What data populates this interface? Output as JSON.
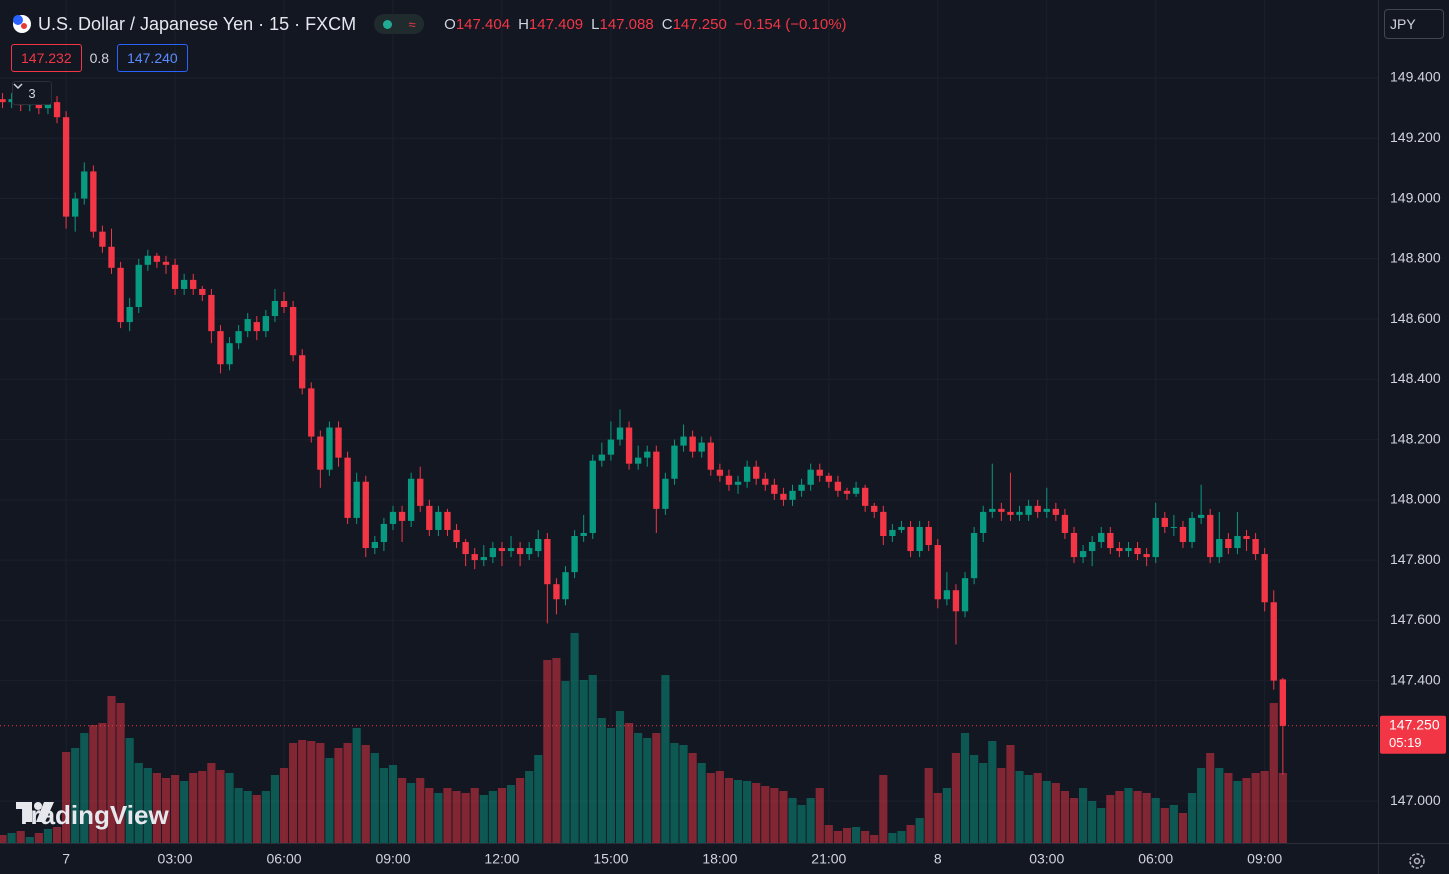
{
  "chart_data": {
    "type": "candlestick",
    "title": "U.S. Dollar / Japanese Yen · 15 · FXCM",
    "legend": {
      "o_key": "O",
      "o": "147.404",
      "h_key": "H",
      "h": "147.409",
      "l_key": "L",
      "l": "147.088",
      "c_key": "C",
      "c": "147.250",
      "change": "−0.154 (−0.10%)"
    },
    "bid": "147.232",
    "spread": "0.8",
    "ask": "147.240",
    "indicator_count": "3",
    "currency": "JPY",
    "last_price_label": "147.250",
    "countdown": "05:19",
    "watermark": "TradingView",
    "up_color": "#089981",
    "down_color": "#f23645",
    "volume_up_color": "rgba(8,153,129,0.5)",
    "volume_down_color": "rgba(242,54,69,0.5)",
    "grid": true,
    "xlim": [
      -1.82,
      36.12
    ],
    "ylim": [
      146.861,
      149.659
    ],
    "xticks": [
      {
        "value": 0,
        "label": "7"
      },
      {
        "value": 3,
        "label": "03:00"
      },
      {
        "value": 6,
        "label": "06:00"
      },
      {
        "value": 9,
        "label": "09:00"
      },
      {
        "value": 12,
        "label": "12:00"
      },
      {
        "value": 15,
        "label": "15:00"
      },
      {
        "value": 18,
        "label": "18:00"
      },
      {
        "value": 21,
        "label": "21:00"
      },
      {
        "value": 24,
        "label": "8"
      },
      {
        "value": 27,
        "label": "03:00"
      },
      {
        "value": 30,
        "label": "06:00"
      },
      {
        "value": 33,
        "label": "09:00"
      }
    ],
    "yticks": [
      {
        "value": 149.4,
        "label": "149.400"
      },
      {
        "value": 149.2,
        "label": "149.200"
      },
      {
        "value": 149.0,
        "label": "149.000"
      },
      {
        "value": 148.8,
        "label": "148.800"
      },
      {
        "value": 148.6,
        "label": "148.600"
      },
      {
        "value": 148.4,
        "label": "148.400"
      },
      {
        "value": 148.2,
        "label": "148.200"
      },
      {
        "value": 148.0,
        "label": "148.000"
      },
      {
        "value": 147.8,
        "label": "147.800"
      },
      {
        "value": 147.6,
        "label": "147.600"
      },
      {
        "value": 147.4,
        "label": "147.400"
      },
      {
        "value": 147.0,
        "label": "147.000"
      }
    ],
    "x": [
      -1.75,
      -1.5,
      -1.25,
      -1,
      -0.75,
      -0.5,
      -0.25,
      0,
      0.25,
      0.5,
      0.75,
      1,
      1.25,
      1.5,
      1.75,
      2,
      2.25,
      2.5,
      2.75,
      3,
      3.25,
      3.5,
      3.75,
      4,
      4.25,
      4.5,
      4.75,
      5,
      5.25,
      5.5,
      5.75,
      6,
      6.25,
      6.5,
      6.75,
      7,
      7.25,
      7.5,
      7.75,
      8,
      8.25,
      8.5,
      8.75,
      9,
      9.25,
      9.5,
      9.75,
      10,
      10.25,
      10.5,
      10.75,
      11,
      11.25,
      11.5,
      11.75,
      12,
      12.25,
      12.5,
      12.75,
      13,
      13.25,
      13.5,
      13.75,
      14,
      14.25,
      14.5,
      14.75,
      15,
      15.25,
      15.5,
      15.75,
      16,
      16.25,
      16.5,
      16.75,
      17,
      17.25,
      17.5,
      17.75,
      18,
      18.25,
      18.5,
      18.75,
      19,
      19.25,
      19.5,
      19.75,
      20,
      20.25,
      20.5,
      20.75,
      21,
      21.25,
      21.5,
      21.75,
      22,
      22.25,
      22.5,
      22.75,
      23,
      23.25,
      23.5,
      23.75,
      24,
      24.25,
      24.5,
      24.75,
      25,
      25.25,
      25.5,
      25.75,
      26,
      26.25,
      26.5,
      26.75,
      27,
      27.25,
      27.5,
      27.75,
      28,
      28.25,
      28.5,
      28.75,
      29,
      29.25,
      29.5,
      29.75,
      30,
      30.25,
      30.5,
      30.75,
      31,
      31.25,
      31.5,
      31.75,
      32,
      32.25,
      32.5,
      32.75,
      33,
      33.25,
      33.5
    ],
    "open": [
      149.33,
      149.32,
      149.33,
      149.31,
      149.32,
      149.3,
      149.32,
      149.27,
      148.94,
      149.0,
      149.09,
      148.89,
      148.84,
      148.77,
      148.59,
      148.64,
      148.78,
      148.81,
      148.79,
      148.78,
      148.7,
      148.73,
      148.7,
      148.68,
      148.56,
      148.45,
      148.52,
      148.56,
      148.59,
      148.56,
      148.61,
      148.66,
      148.64,
      148.48,
      148.37,
      148.21,
      148.1,
      148.24,
      148.14,
      147.94,
      148.06,
      147.84,
      147.86,
      147.92,
      147.96,
      147.93,
      148.07,
      147.98,
      147.9,
      147.96,
      147.9,
      147.86,
      147.82,
      147.8,
      147.81,
      147.84,
      147.83,
      147.84,
      147.82,
      147.83,
      147.87,
      147.72,
      147.67,
      147.76,
      147.88,
      147.89,
      148.13,
      148.15,
      148.2,
      148.24,
      148.12,
      148.14,
      148.16,
      147.97,
      148.07,
      148.18,
      148.21,
      148.16,
      148.19,
      148.1,
      148.08,
      148.05,
      148.06,
      148.11,
      148.07,
      148.05,
      148.02,
      148.0,
      148.03,
      148.05,
      148.1,
      148.08,
      148.06,
      148.03,
      148.02,
      148.04,
      147.98,
      147.96,
      147.88,
      147.9,
      147.91,
      147.83,
      147.91,
      147.85,
      147.67,
      147.7,
      147.63,
      147.74,
      147.89,
      147.96,
      147.97,
      147.96,
      147.95,
      147.95,
      147.98,
      147.96,
      147.97,
      147.95,
      147.89,
      147.81,
      147.83,
      147.86,
      147.89,
      147.84,
      147.83,
      147.84,
      147.82,
      147.81,
      147.94,
      147.91,
      147.91,
      147.86,
      147.94,
      147.95,
      147.81,
      147.87,
      147.84,
      147.88,
      147.87,
      147.82,
      147.66,
      147.404
    ],
    "high": [
      149.35,
      149.35,
      149.35,
      149.34,
      149.34,
      149.34,
      149.34,
      149.29,
      149.02,
      149.12,
      149.11,
      148.91,
      148.9,
      148.79,
      148.67,
      148.8,
      148.83,
      148.82,
      148.81,
      148.8,
      148.75,
      148.75,
      148.71,
      148.7,
      148.58,
      148.54,
      148.58,
      148.62,
      148.61,
      148.63,
      148.7,
      148.69,
      148.66,
      148.5,
      148.39,
      148.23,
      148.26,
      148.26,
      148.16,
      148.09,
      148.08,
      147.88,
      147.94,
      147.98,
      147.98,
      148.09,
      148.11,
      148.0,
      147.98,
      147.97,
      147.92,
      147.87,
      147.84,
      147.85,
      147.86,
      147.86,
      147.88,
      147.86,
      147.86,
      147.9,
      147.89,
      147.74,
      147.78,
      147.9,
      147.95,
      148.15,
      148.19,
      148.26,
      148.3,
      148.26,
      148.18,
      148.18,
      148.18,
      148.09,
      148.2,
      148.25,
      148.23,
      148.21,
      148.21,
      148.12,
      148.1,
      148.08,
      148.13,
      148.13,
      148.09,
      148.07,
      148.04,
      148.05,
      148.07,
      148.12,
      148.12,
      148.09,
      148.08,
      148.04,
      148.06,
      148.05,
      147.99,
      147.98,
      147.92,
      147.93,
      147.93,
      147.93,
      147.93,
      147.87,
      147.76,
      147.72,
      147.76,
      147.91,
      147.98,
      148.12,
      147.99,
      148.09,
      147.98,
      148.0,
      148.0,
      148.04,
      147.99,
      147.97,
      147.91,
      147.85,
      147.88,
      147.91,
      147.91,
      147.86,
      147.86,
      147.86,
      147.84,
      147.99,
      147.96,
      147.95,
      147.93,
      147.96,
      148.05,
      147.97,
      147.96,
      147.89,
      147.96,
      147.9,
      147.89,
      147.84,
      147.7,
      147.409
    ],
    "low": [
      149.3,
      149.3,
      149.29,
      149.29,
      149.28,
      149.28,
      149.25,
      148.9,
      148.89,
      148.98,
      148.87,
      148.82,
      148.75,
      148.57,
      148.56,
      148.62,
      148.76,
      148.77,
      148.75,
      148.68,
      148.68,
      148.68,
      148.66,
      148.52,
      148.42,
      148.43,
      148.5,
      148.54,
      148.53,
      148.54,
      148.59,
      148.62,
      148.46,
      148.35,
      148.19,
      148.04,
      148.08,
      148.11,
      147.92,
      147.92,
      147.81,
      147.82,
      147.83,
      147.9,
      147.86,
      147.91,
      147.96,
      147.88,
      147.88,
      147.88,
      147.84,
      147.78,
      147.77,
      147.78,
      147.79,
      147.78,
      147.81,
      147.78,
      147.8,
      147.81,
      147.59,
      147.62,
      147.65,
      147.74,
      147.86,
      147.87,
      148.11,
      148.13,
      148.18,
      148.1,
      148.1,
      148.11,
      147.89,
      147.95,
      148.05,
      148.16,
      148.14,
      148.14,
      148.08,
      148.06,
      148.03,
      148.02,
      148.04,
      148.05,
      148.03,
      148.0,
      147.98,
      147.98,
      148.01,
      148.03,
      148.06,
      148.04,
      148.01,
      148.0,
      148.01,
      147.96,
      147.94,
      147.85,
      147.86,
      147.89,
      147.81,
      147.81,
      147.83,
      147.64,
      147.65,
      147.52,
      147.61,
      147.72,
      147.86,
      147.94,
      147.93,
      147.93,
      147.93,
      147.93,
      147.94,
      147.94,
      147.93,
      147.87,
      147.79,
      147.79,
      147.78,
      147.84,
      147.82,
      147.81,
      147.81,
      147.8,
      147.78,
      147.79,
      147.89,
      147.88,
      147.84,
      147.84,
      147.92,
      147.79,
      147.79,
      147.82,
      147.82,
      147.83,
      147.8,
      147.63,
      147.37,
      147.088
    ],
    "close": [
      149.32,
      149.33,
      149.31,
      149.32,
      149.3,
      149.32,
      149.27,
      148.94,
      149.0,
      149.09,
      148.89,
      148.84,
      148.77,
      148.59,
      148.64,
      148.78,
      148.81,
      148.79,
      148.78,
      148.7,
      148.73,
      148.7,
      148.68,
      148.56,
      148.45,
      148.52,
      148.56,
      148.6,
      148.56,
      148.61,
      148.66,
      148.64,
      148.48,
      148.37,
      148.21,
      148.1,
      148.24,
      148.14,
      147.94,
      148.06,
      147.84,
      147.86,
      147.92,
      147.96,
      147.93,
      148.07,
      147.98,
      147.9,
      147.96,
      147.9,
      147.86,
      147.82,
      147.8,
      147.81,
      147.84,
      147.83,
      147.84,
      147.82,
      147.84,
      147.87,
      147.72,
      147.67,
      147.76,
      147.88,
      147.89,
      148.13,
      148.15,
      148.2,
      148.24,
      148.12,
      148.14,
      148.16,
      147.97,
      148.07,
      148.18,
      148.21,
      148.16,
      148.19,
      148.1,
      148.08,
      148.05,
      148.06,
      148.11,
      148.07,
      148.05,
      148.02,
      148.0,
      148.03,
      148.05,
      148.1,
      148.08,
      148.06,
      148.03,
      148.02,
      148.04,
      147.98,
      147.96,
      147.88,
      147.9,
      147.91,
      147.83,
      147.91,
      147.85,
      147.67,
      147.7,
      147.63,
      147.74,
      147.89,
      147.96,
      147.97,
      147.96,
      147.95,
      147.96,
      147.98,
      147.96,
      147.97,
      147.95,
      147.89,
      147.81,
      147.83,
      147.86,
      147.89,
      147.84,
      147.83,
      147.84,
      147.82,
      147.81,
      147.94,
      147.91,
      147.91,
      147.86,
      147.94,
      147.95,
      147.81,
      147.87,
      147.84,
      147.88,
      147.87,
      147.82,
      147.66,
      147.4,
      147.25
    ],
    "volume": [
      8,
      10,
      12,
      6,
      10,
      14,
      16,
      91,
      95,
      110,
      118,
      120,
      147,
      140,
      105,
      80,
      75,
      70,
      65,
      68,
      62,
      70,
      72,
      80,
      73,
      70,
      55,
      52,
      48,
      52,
      68,
      75,
      100,
      103,
      102,
      100,
      85,
      95,
      100,
      115,
      98,
      90,
      75,
      78,
      65,
      60,
      65,
      55,
      50,
      55,
      52,
      50,
      55,
      48,
      52,
      55,
      58,
      65,
      72,
      88,
      183,
      185,
      162,
      210,
      163,
      168,
      125,
      115,
      132,
      120,
      110,
      105,
      110,
      168,
      100,
      98,
      90,
      80,
      70,
      72,
      65,
      63,
      62,
      60,
      57,
      55,
      52,
      45,
      38,
      45,
      55,
      18,
      12,
      15,
      16,
      12,
      8,
      68,
      10,
      12,
      18,
      25,
      75,
      50,
      55,
      90,
      110,
      88,
      80,
      102,
      75,
      98,
      72,
      68,
      70,
      62,
      60,
      52,
      45,
      55,
      42,
      35,
      48,
      52,
      55,
      52,
      50,
      45,
      35,
      38,
      30,
      50,
      75,
      90,
      75,
      70,
      62,
      65,
      70,
      72,
      140,
      70
    ]
  }
}
